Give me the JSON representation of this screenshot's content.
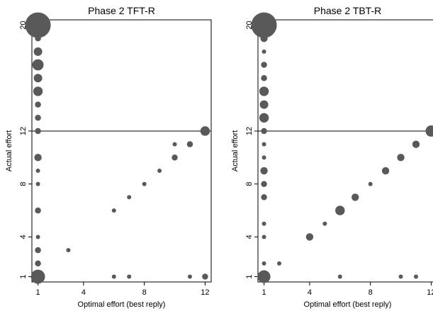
{
  "chart_data": [
    {
      "type": "scatter",
      "title": "Phase 2 TFT-R",
      "x_label": "Optimal effort (best reply)",
      "y_label": "Actual effort",
      "color": "#595959",
      "xlim": [
        0.6,
        12.4
      ],
      "ylim": [
        0.6,
        20.4
      ],
      "xticks": [
        1,
        4,
        8,
        12
      ],
      "yticks": [
        1,
        4,
        8,
        12,
        20
      ],
      "hline": 12,
      "x": [
        1,
        1,
        1,
        1,
        1,
        1,
        1,
        1,
        1,
        1,
        1,
        1,
        1,
        1,
        1,
        1,
        1,
        3,
        6,
        7,
        8,
        9,
        10,
        10,
        11,
        12,
        6,
        7,
        11,
        12
      ],
      "values": [
        20,
        19,
        18,
        17,
        16,
        15,
        14,
        13,
        12,
        10,
        9,
        8,
        6,
        4,
        3,
        2,
        1,
        3,
        6,
        7,
        8,
        9,
        10,
        11,
        11,
        12,
        1,
        1,
        1,
        1
      ],
      "sizes": [
        36,
        2,
        4,
        7,
        4,
        5,
        2,
        2,
        2,
        3,
        1,
        1,
        2,
        1,
        2,
        2,
        11,
        1,
        1,
        1,
        1,
        1,
        2,
        1,
        2,
        5,
        1,
        1,
        1,
        2
      ]
    },
    {
      "type": "scatter",
      "title": "Phase 2 TBT-R",
      "x_label": "Optimal effort (best reply)",
      "y_label": "Actual effort",
      "color": "#595959",
      "xlim": [
        0.6,
        12.4
      ],
      "ylim": [
        0.6,
        20.4
      ],
      "xticks": [
        1,
        4,
        8,
        12
      ],
      "yticks": [
        1,
        4,
        8,
        12,
        20
      ],
      "hline": 12,
      "x": [
        1,
        1,
        1,
        1,
        1,
        1,
        1,
        1,
        1,
        1,
        1,
        1,
        1,
        1,
        1,
        1,
        1,
        1,
        2,
        4,
        5,
        6,
        7,
        8,
        9,
        10,
        11,
        12,
        6,
        10,
        11
      ],
      "values": [
        20,
        19,
        18,
        17,
        16,
        15,
        14,
        13,
        12,
        11,
        10,
        9,
        8,
        7,
        5,
        4,
        2,
        1,
        2,
        4,
        5,
        6,
        7,
        8,
        9,
        10,
        11,
        12,
        1,
        1,
        1
      ],
      "sizes": [
        36,
        3,
        1,
        2,
        2,
        5,
        4,
        5,
        2,
        1,
        1,
        3,
        2,
        2,
        1,
        1,
        1,
        9,
        1,
        3,
        1,
        5,
        3,
        1,
        3,
        3,
        3,
        7,
        1,
        1,
        1
      ]
    }
  ]
}
